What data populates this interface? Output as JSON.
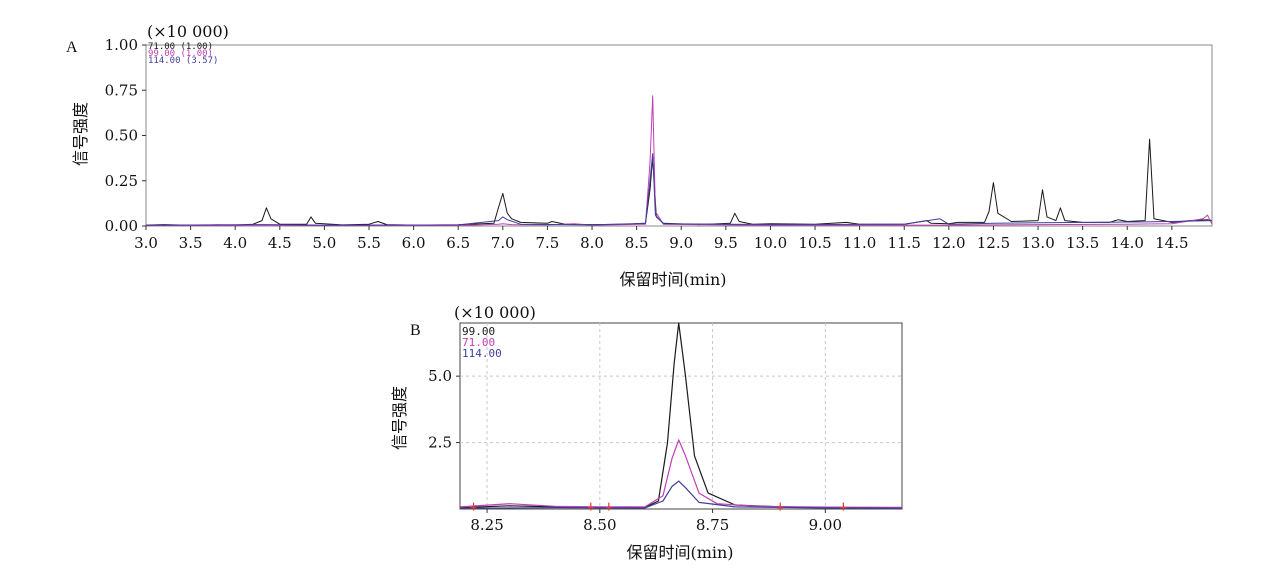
{
  "chart_data": [
    {
      "type": "line",
      "panel_label": "A",
      "multiplier": "(×10 000)",
      "ylabel": "信号强度",
      "xlabel": "保留时间(min)",
      "xlim": [
        3.0,
        14.95
      ],
      "ylim": [
        0.0,
        1.0
      ],
      "x_ticks": [
        "3.0",
        "3.5",
        "4.0",
        "4.5",
        "5.0",
        "5.5",
        "6.0",
        "6.5",
        "7.0",
        "7.5",
        "8.0",
        "8.5",
        "9.0",
        "9.5",
        "10.0",
        "10.5",
        "11.0",
        "11.5",
        "12.0",
        "12.5",
        "13.0",
        "13.5",
        "14.0",
        "14.5"
      ],
      "y_ticks": [
        "0.00",
        "0.25",
        "0.50",
        "0.75",
        "1.00"
      ],
      "grid": false,
      "legend_position": "top-left",
      "series": [
        {
          "name": "71.00 (1.00)",
          "color": "#1a1a1a",
          "points": [
            [
              3.0,
              0.005
            ],
            [
              3.2,
              0.008
            ],
            [
              3.5,
              0.004
            ],
            [
              3.8,
              0.006
            ],
            [
              4.0,
              0.005
            ],
            [
              4.2,
              0.01
            ],
            [
              4.3,
              0.03
            ],
            [
              4.35,
              0.1
            ],
            [
              4.4,
              0.04
            ],
            [
              4.5,
              0.01
            ],
            [
              4.8,
              0.01
            ],
            [
              4.85,
              0.05
            ],
            [
              4.9,
              0.015
            ],
            [
              5.2,
              0.006
            ],
            [
              5.5,
              0.01
            ],
            [
              5.6,
              0.025
            ],
            [
              5.7,
              0.008
            ],
            [
              6.0,
              0.005
            ],
            [
              6.5,
              0.007
            ],
            [
              6.9,
              0.015
            ],
            [
              6.95,
              0.1
            ],
            [
              7.0,
              0.18
            ],
            [
              7.05,
              0.07
            ],
            [
              7.1,
              0.04
            ],
            [
              7.2,
              0.02
            ],
            [
              7.5,
              0.015
            ],
            [
              7.55,
              0.025
            ],
            [
              7.7,
              0.01
            ],
            [
              8.0,
              0.008
            ],
            [
              8.4,
              0.01
            ],
            [
              8.6,
              0.015
            ],
            [
              8.65,
              0.2
            ],
            [
              8.68,
              0.38
            ],
            [
              8.72,
              0.05
            ],
            [
              8.8,
              0.015
            ],
            [
              9.2,
              0.008
            ],
            [
              9.55,
              0.015
            ],
            [
              9.6,
              0.07
            ],
            [
              9.65,
              0.025
            ],
            [
              9.8,
              0.01
            ],
            [
              10.0,
              0.012
            ],
            [
              10.5,
              0.01
            ],
            [
              10.85,
              0.02
            ],
            [
              11.0,
              0.01
            ],
            [
              11.5,
              0.01
            ],
            [
              11.75,
              0.03
            ],
            [
              11.8,
              0.015
            ],
            [
              12.0,
              0.012
            ],
            [
              12.1,
              0.02
            ],
            [
              12.4,
              0.02
            ],
            [
              12.45,
              0.08
            ],
            [
              12.5,
              0.24
            ],
            [
              12.55,
              0.07
            ],
            [
              12.7,
              0.025
            ],
            [
              13.0,
              0.03
            ],
            [
              13.05,
              0.2
            ],
            [
              13.1,
              0.05
            ],
            [
              13.2,
              0.03
            ],
            [
              13.25,
              0.1
            ],
            [
              13.3,
              0.03
            ],
            [
              13.5,
              0.02
            ],
            [
              13.8,
              0.02
            ],
            [
              13.9,
              0.035
            ],
            [
              14.0,
              0.025
            ],
            [
              14.2,
              0.03
            ],
            [
              14.25,
              0.48
            ],
            [
              14.3,
              0.04
            ],
            [
              14.5,
              0.02
            ],
            [
              14.7,
              0.03
            ],
            [
              14.9,
              0.035
            ],
            [
              14.95,
              0.03
            ]
          ]
        },
        {
          "name": "99.00 (1.00)",
          "color": "#c23fb5",
          "points": [
            [
              3.0,
              0.002
            ],
            [
              6.5,
              0.003
            ],
            [
              6.95,
              0.01
            ],
            [
              7.0,
              0.012
            ],
            [
              7.1,
              0.008
            ],
            [
              7.5,
              0.006
            ],
            [
              7.8,
              0.012
            ],
            [
              8.0,
              0.005
            ],
            [
              8.6,
              0.01
            ],
            [
              8.65,
              0.35
            ],
            [
              8.68,
              0.72
            ],
            [
              8.71,
              0.08
            ],
            [
              8.8,
              0.01
            ],
            [
              10.0,
              0.004
            ],
            [
              12.0,
              0.005
            ],
            [
              13.0,
              0.008
            ],
            [
              14.0,
              0.01
            ],
            [
              14.5,
              0.012
            ],
            [
              14.85,
              0.04
            ],
            [
              14.9,
              0.06
            ],
            [
              14.95,
              0.01
            ]
          ]
        },
        {
          "name": "114.00 (3.57)",
          "color": "#3f3f9f",
          "points": [
            [
              3.0,
              0.004
            ],
            [
              4.35,
              0.008
            ],
            [
              5.0,
              0.005
            ],
            [
              6.5,
              0.006
            ],
            [
              6.95,
              0.03
            ],
            [
              7.0,
              0.05
            ],
            [
              7.05,
              0.035
            ],
            [
              7.2,
              0.01
            ],
            [
              8.0,
              0.006
            ],
            [
              8.6,
              0.015
            ],
            [
              8.65,
              0.25
            ],
            [
              8.68,
              0.4
            ],
            [
              8.71,
              0.06
            ],
            [
              8.8,
              0.012
            ],
            [
              10.0,
              0.008
            ],
            [
              11.5,
              0.01
            ],
            [
              11.9,
              0.04
            ],
            [
              12.0,
              0.01
            ],
            [
              12.5,
              0.015
            ],
            [
              13.0,
              0.018
            ],
            [
              13.6,
              0.02
            ],
            [
              14.0,
              0.022
            ],
            [
              14.5,
              0.025
            ],
            [
              14.95,
              0.03
            ]
          ]
        }
      ]
    },
    {
      "type": "line",
      "panel_label": "B",
      "multiplier": "(×10 000)",
      "ylabel": "信号强度",
      "xlabel": "保留时间(min)",
      "xlim": [
        8.19,
        9.17
      ],
      "ylim": [
        0.0,
        7.0
      ],
      "x_ticks": [
        "8.25",
        "8.50",
        "8.75",
        "9.00"
      ],
      "y_ticks": [
        "2.5",
        "5.0"
      ],
      "grid": true,
      "legend_position": "top-left",
      "series": [
        {
          "name": "99.00",
          "color": "#1a1a1a",
          "points": [
            [
              8.19,
              0.05
            ],
            [
              8.3,
              0.12
            ],
            [
              8.4,
              0.08
            ],
            [
              8.5,
              0.05
            ],
            [
              8.6,
              0.06
            ],
            [
              8.63,
              0.3
            ],
            [
              8.65,
              2.5
            ],
            [
              8.665,
              5.5
            ],
            [
              8.675,
              7.0
            ],
            [
              8.69,
              5.0
            ],
            [
              8.71,
              2.0
            ],
            [
              8.74,
              0.6
            ],
            [
              8.8,
              0.15
            ],
            [
              8.9,
              0.08
            ],
            [
              9.0,
              0.05
            ],
            [
              9.17,
              0.04
            ]
          ]
        },
        {
          "name": "71.00",
          "color": "#c23fb5",
          "points": [
            [
              8.19,
              0.08
            ],
            [
              8.3,
              0.2
            ],
            [
              8.4,
              0.1
            ],
            [
              8.5,
              0.08
            ],
            [
              8.6,
              0.08
            ],
            [
              8.64,
              0.5
            ],
            [
              8.66,
              1.9
            ],
            [
              8.675,
              2.6
            ],
            [
              8.69,
              2.0
            ],
            [
              8.72,
              0.6
            ],
            [
              8.76,
              0.2
            ],
            [
              8.85,
              0.1
            ],
            [
              9.0,
              0.07
            ],
            [
              9.17,
              0.06
            ]
          ]
        },
        {
          "name": "114.00",
          "color": "#3f3f9f",
          "points": [
            [
              8.19,
              0.03
            ],
            [
              8.4,
              0.05
            ],
            [
              8.6,
              0.04
            ],
            [
              8.64,
              0.3
            ],
            [
              8.66,
              0.85
            ],
            [
              8.675,
              1.05
            ],
            [
              8.69,
              0.8
            ],
            [
              8.72,
              0.25
            ],
            [
              8.8,
              0.08
            ],
            [
              9.0,
              0.04
            ],
            [
              9.17,
              0.03
            ]
          ]
        }
      ],
      "markers": {
        "color": "#e03a3a",
        "x": [
          8.22,
          8.48,
          8.52,
          8.9,
          9.04
        ]
      }
    }
  ]
}
